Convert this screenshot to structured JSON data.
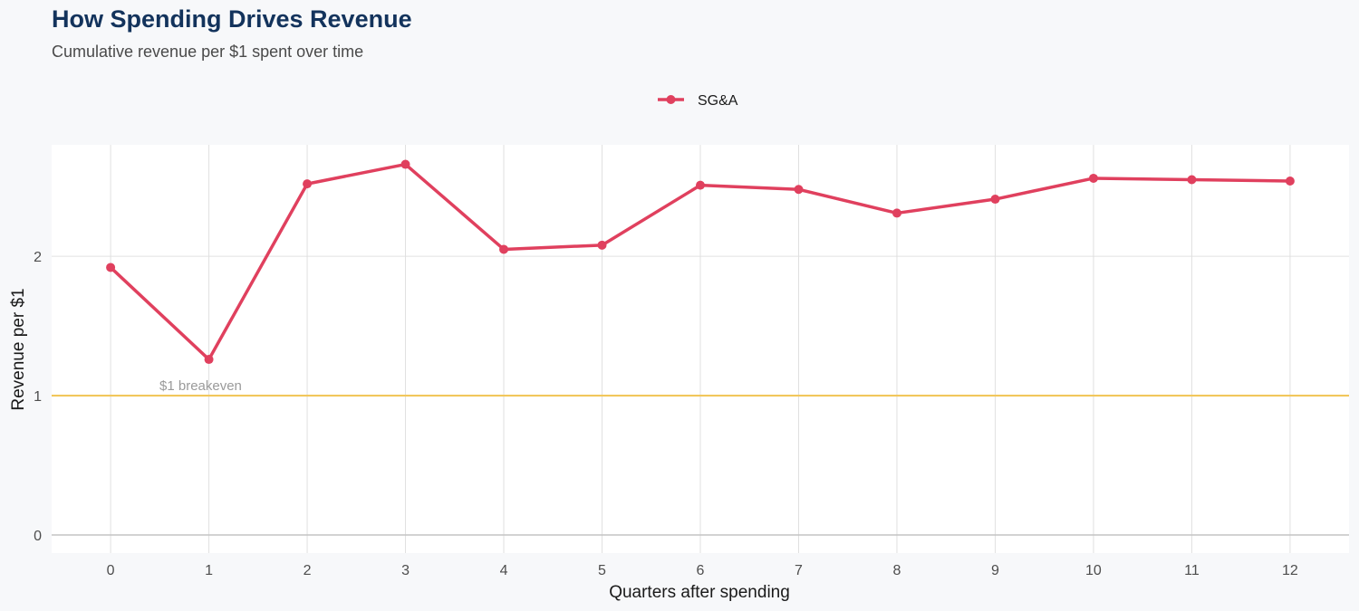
{
  "title": "How Spending Drives Revenue",
  "subtitle": "Cumulative revenue per $1 spent over time",
  "colors": {
    "series": "#e0405e",
    "reference_line": "#f2c75c",
    "grid": "#e0e0e0",
    "panel": "#ffffff",
    "background": "#f7f8fa",
    "title": "#13335c"
  },
  "chart_data": {
    "type": "line",
    "xlabel": "Quarters after spending",
    "ylabel": "Revenue per $1",
    "x": [
      0,
      1,
      2,
      3,
      4,
      5,
      6,
      7,
      8,
      9,
      10,
      11,
      12
    ],
    "series": [
      {
        "name": "SG&A",
        "values": [
          1.92,
          1.26,
          2.52,
          2.66,
          2.05,
          2.08,
          2.51,
          2.48,
          2.31,
          2.41,
          2.56,
          2.55,
          2.54
        ]
      }
    ],
    "xlim": [
      -0.6,
      12.6
    ],
    "ylim": [
      -0.13,
      2.8
    ],
    "xticks": [
      "0",
      "1",
      "2",
      "3",
      "4",
      "5",
      "6",
      "7",
      "8",
      "9",
      "10",
      "11",
      "12"
    ],
    "yticks": [
      "0",
      "1",
      "2"
    ],
    "grid": true,
    "legend": "top-center",
    "reference_line": {
      "y": 1,
      "label": "$1 breakeven"
    }
  }
}
